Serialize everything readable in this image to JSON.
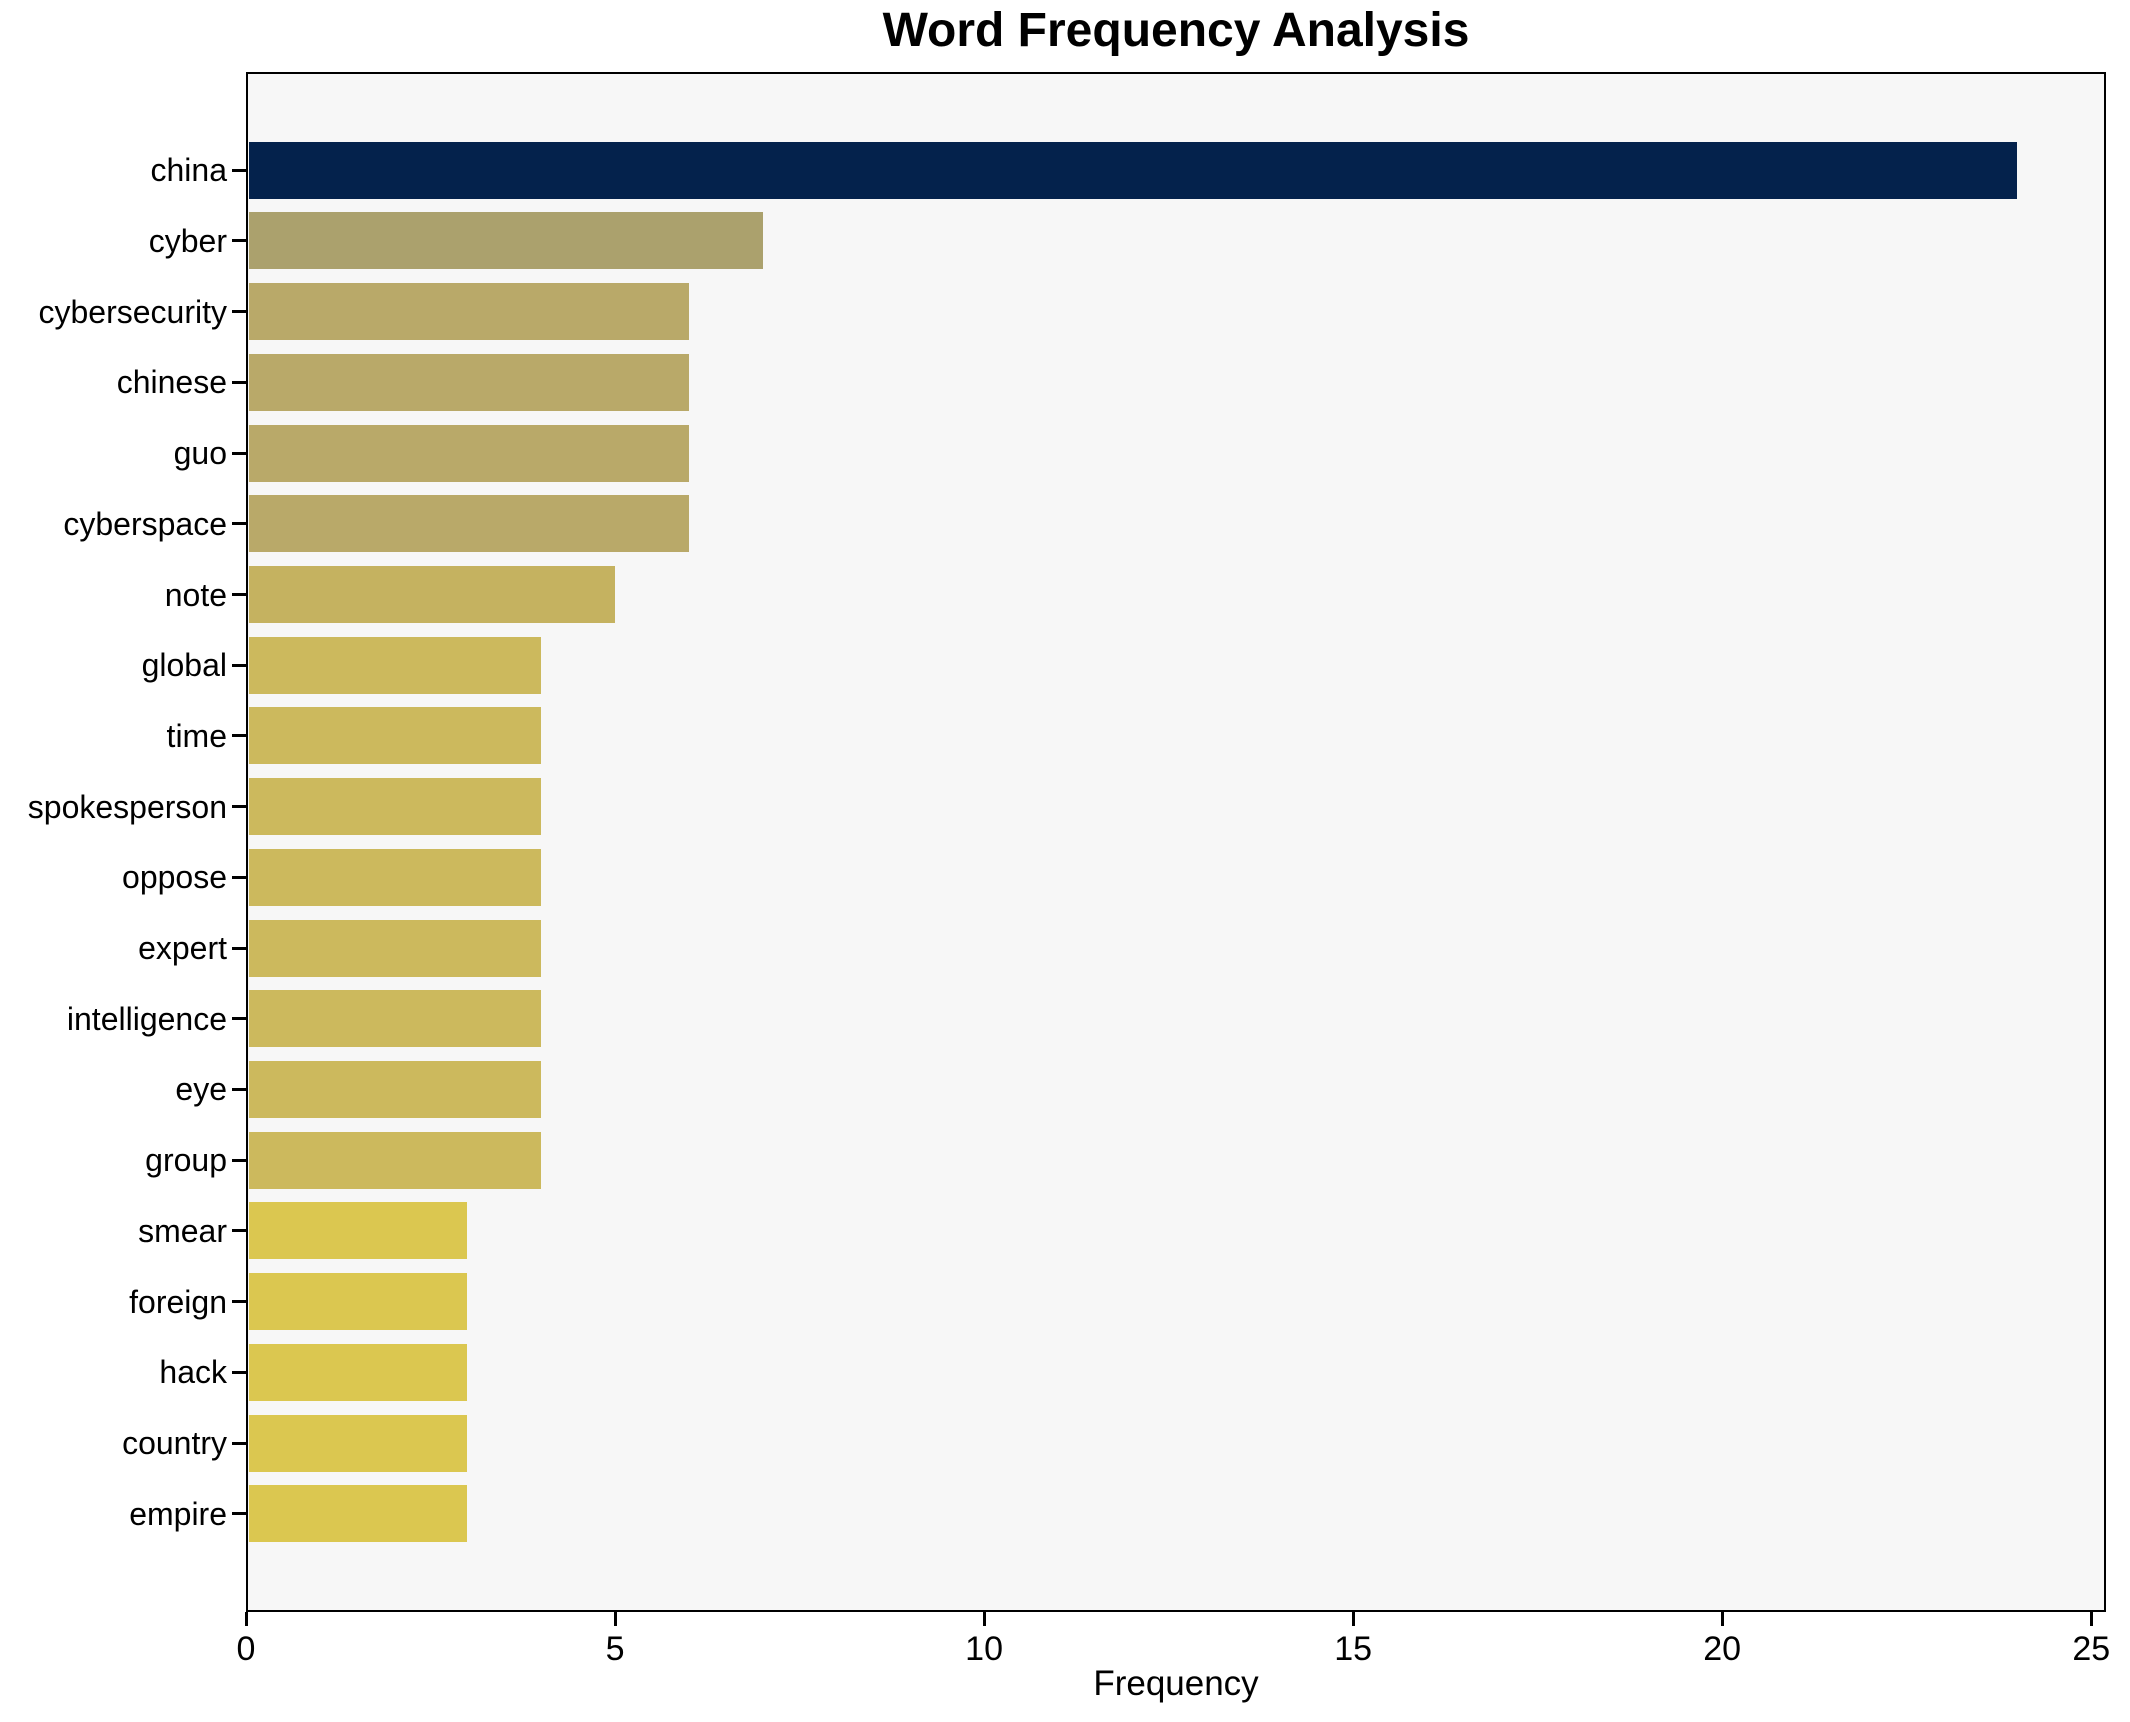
{
  "figure": {
    "title": "Word Frequency Analysis",
    "background_color": "#ffffff",
    "plot_background_color": "#f7f7f7",
    "axis_color": "#000000",
    "text_color": "#000000"
  },
  "chart_data": {
    "type": "bar",
    "orientation": "horizontal",
    "title": "Word Frequency Analysis",
    "xlabel": "Frequency",
    "ylabel": "",
    "grid": false,
    "legend_position": "none",
    "xlim": [
      0,
      25.2
    ],
    "xticks": [
      0,
      5,
      10,
      15,
      20,
      25
    ],
    "categories": [
      "china",
      "cyber",
      "cybersecurity",
      "chinese",
      "guo",
      "cyberspace",
      "note",
      "global",
      "time",
      "spokesperson",
      "oppose",
      "expert",
      "intelligence",
      "eye",
      "group",
      "smear",
      "foreign",
      "hack",
      "country",
      "empire"
    ],
    "values": [
      24,
      7,
      6,
      6,
      6,
      6,
      5,
      4,
      4,
      4,
      4,
      4,
      4,
      4,
      4,
      3,
      3,
      3,
      3,
      3
    ],
    "bar_colors": [
      "#04224c",
      "#aba16d",
      "#b9a969",
      "#b9a969",
      "#b9a969",
      "#b9a969",
      "#c5b260",
      "#ccb95d",
      "#ccb95d",
      "#ccb95d",
      "#ccb95d",
      "#ccb95d",
      "#ccb95d",
      "#ccb95d",
      "#ccb95d",
      "#dbc750",
      "#dbc750",
      "#dbc750",
      "#dbc750",
      "#dbc750"
    ]
  }
}
